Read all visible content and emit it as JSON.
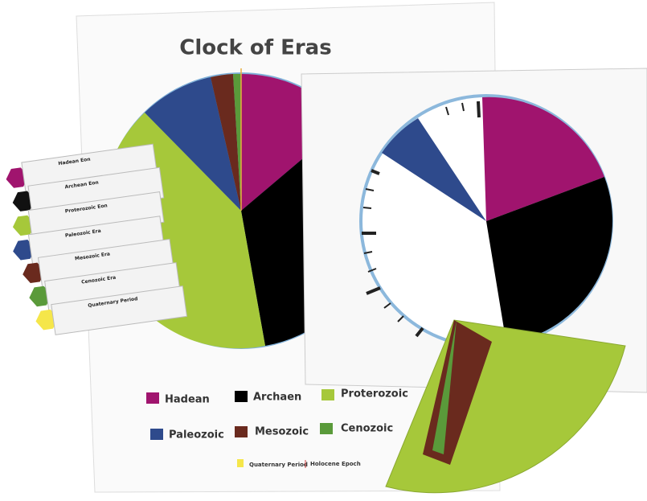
{
  "title": "Clock of Eras",
  "legend": [
    {
      "label": "Hadean"
    },
    {
      "label": "Archaen"
    },
    {
      "label": "Proterozoic"
    },
    {
      "label": "Paleozoic"
    },
    {
      "label": "Mesozoic"
    },
    {
      "label": "Cenozoic"
    },
    {
      "label": "Quaternary Period"
    },
    {
      "label": "Holocene Epoch"
    }
  ],
  "cards": [
    {
      "title": "Hadean Eon"
    },
    {
      "title": "Archean Eon"
    },
    {
      "title": "Proterozoic Eon"
    },
    {
      "title": "Paleozoic Era"
    },
    {
      "title": "Mesozoic Era"
    },
    {
      "title": "Cenozoic Era"
    },
    {
      "title": "Quaternary Period"
    }
  ]
}
